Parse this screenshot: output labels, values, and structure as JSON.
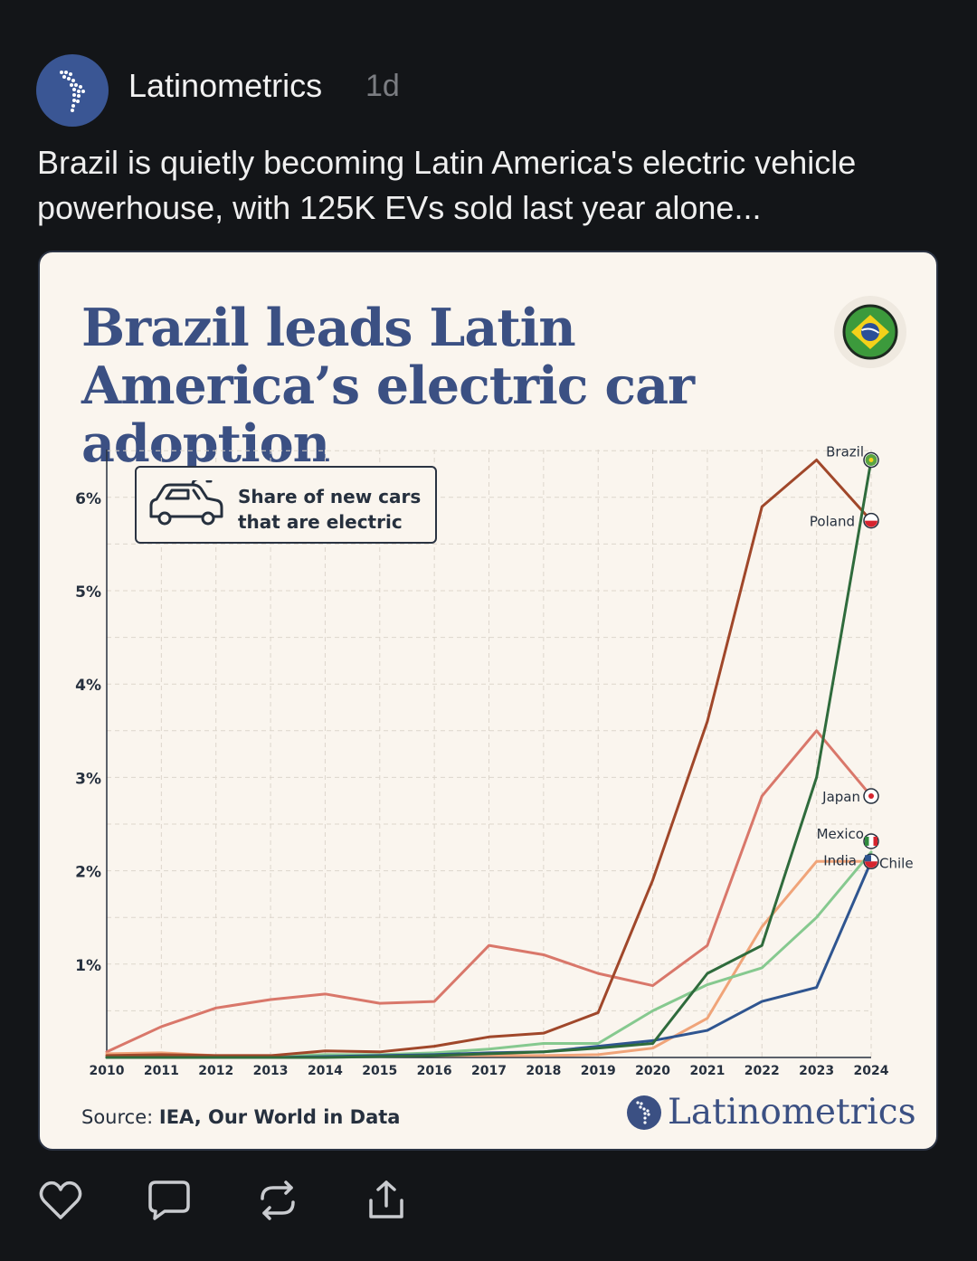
{
  "post": {
    "author": "Latinometrics",
    "age": "1d",
    "text": "Brazil is quietly becoming Latin America's electric vehicle powerhouse, with 125K EVs sold last year alone..."
  },
  "chart_card": {
    "source_label": "Source:",
    "source_text": "IEA, Our World in Data",
    "brand": "Latinometrics"
  },
  "actions": [
    "like",
    "reply",
    "repost",
    "share"
  ],
  "colors": {
    "Brazil": "#2f6b3c",
    "Poland": "#a0472a",
    "Japan": "#d9776a",
    "Mexico": "#86c98f",
    "India": "#f0a479",
    "Chile": "#2f5590",
    "accent": "#3b5083"
  },
  "chart_data": {
    "type": "line",
    "title": "Brazil leads Latin America’s electric car adoption",
    "legend_text": "Share of new cars that are electric",
    "xlabel": "",
    "ylabel": "",
    "x": [
      2010,
      2011,
      2012,
      2013,
      2014,
      2015,
      2016,
      2017,
      2018,
      2019,
      2020,
      2021,
      2022,
      2023,
      2024
    ],
    "ylim": [
      0,
      6.5
    ],
    "yticks": [
      1,
      2,
      3,
      4,
      5,
      6
    ],
    "ytick_labels": [
      "1%",
      "2%",
      "3%",
      "4%",
      "5%",
      "6%"
    ],
    "series": [
      {
        "name": "Brazil",
        "values": [
          0,
          0,
          0,
          0,
          0,
          0.01,
          0.02,
          0.04,
          0.06,
          0.1,
          0.15,
          0.9,
          1.2,
          3.0,
          6.4
        ]
      },
      {
        "name": "Poland",
        "values": [
          0.02,
          0.03,
          0.02,
          0.02,
          0.07,
          0.06,
          0.12,
          0.22,
          0.26,
          0.48,
          1.9,
          3.6,
          5.9,
          6.4,
          5.75
        ]
      },
      {
        "name": "Japan",
        "values": [
          0.06,
          0.33,
          0.53,
          0.62,
          0.68,
          0.58,
          0.6,
          1.2,
          1.1,
          0.9,
          0.77,
          1.2,
          2.8,
          3.5,
          2.8
        ]
      },
      {
        "name": "Mexico",
        "values": [
          0,
          0,
          0,
          0.01,
          0.03,
          0.03,
          0.05,
          0.09,
          0.15,
          0.15,
          0.5,
          0.78,
          0.96,
          1.5,
          2.2
        ]
      },
      {
        "name": "India",
        "values": [
          0.04,
          0.05,
          0.02,
          0.02,
          0.03,
          0.02,
          0.02,
          0.02,
          0.02,
          0.03,
          0.1,
          0.42,
          1.4,
          2.1,
          2.1
        ]
      },
      {
        "name": "Chile",
        "values": [
          0,
          0,
          0,
          0,
          0.01,
          0.02,
          0.03,
          0.05,
          0.06,
          0.12,
          0.18,
          0.29,
          0.6,
          0.75,
          2.1
        ]
      }
    ],
    "end_labels": [
      {
        "name": "Brazil",
        "text": "Brazil"
      },
      {
        "name": "Poland",
        "text": "Poland"
      },
      {
        "name": "Japan",
        "text": "Japan"
      },
      {
        "name": "Mexico",
        "text": "Mexico"
      },
      {
        "name": "India",
        "text": "India"
      },
      {
        "name": "Chile",
        "text": "Chile"
      }
    ]
  }
}
